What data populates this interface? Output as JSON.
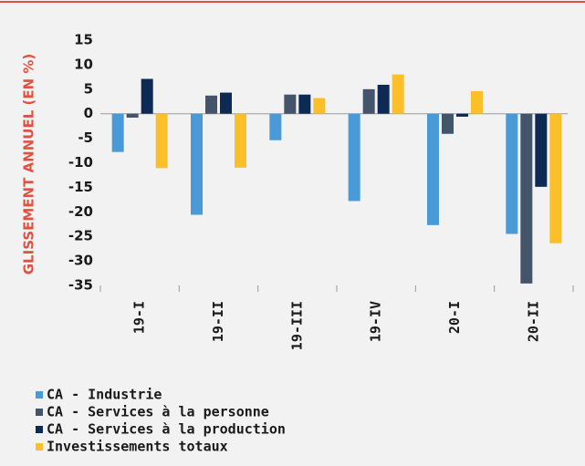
{
  "chart_data": {
    "type": "bar",
    "ylabel": "GLISSEMENT ANNUEL (EN %)",
    "categories": [
      "19-I",
      "19-II",
      "19-III",
      "19-IV",
      "20-I",
      "20-II"
    ],
    "series": [
      {
        "name": "CA - Industrie",
        "color": "#4a9ad8",
        "values": [
          -7.8,
          -20.6,
          -5.4,
          -17.8,
          -22.7,
          -24.5
        ]
      },
      {
        "name": "CA - Services à la personne",
        "color": "#44546a",
        "values": [
          -0.8,
          3.7,
          3.9,
          5.0,
          -4.1,
          -34.6
        ]
      },
      {
        "name": "CA - Services à la production",
        "color": "#0d2a55",
        "values": [
          7.1,
          4.3,
          3.9,
          5.9,
          -0.6,
          -14.9
        ]
      },
      {
        "name": "Investissements totaux",
        "color": "#fbbf2a",
        "values": [
          -11.1,
          -11.0,
          3.2,
          8.0,
          4.6,
          -26.4
        ]
      }
    ],
    "ylim": [
      -35,
      15
    ],
    "yticks": [
      15,
      10,
      5,
      0,
      -5,
      -10,
      -15,
      -20,
      -25,
      -30,
      -35
    ],
    "legend": "bottom-left"
  }
}
